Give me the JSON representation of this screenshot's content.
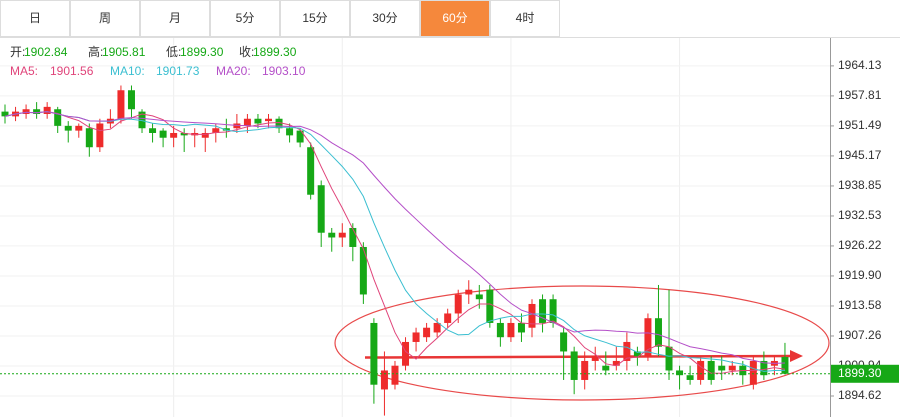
{
  "tabs": [
    "日",
    "周",
    "月",
    "5分",
    "15分",
    "30分",
    "60分",
    "4时"
  ],
  "active_tab": "60分",
  "info": [
    {
      "label": "开:",
      "value": "1902.84"
    },
    {
      "label": "高:",
      "value": "1905.81"
    },
    {
      "label": "低:",
      "value": "1899.30"
    },
    {
      "label": "收:",
      "value": "1899.30"
    }
  ],
  "moving_averages": [
    {
      "name": "MA5:",
      "value": "1901.56",
      "color": "#e0447a",
      "period": 5
    },
    {
      "name": "MA10:",
      "value": "1901.73",
      "color": "#3bbfd1",
      "period": 10
    },
    {
      "name": "MA20:",
      "value": "1903.10",
      "color": "#b44fc8",
      "period": 20
    }
  ],
  "chart_data": {
    "type": "candlestick",
    "up_color": "#ee2b2b",
    "down_color": "#16a816",
    "grid": true,
    "ylim": [
      1890.2,
      1970.0
    ],
    "yticks": [
      1964.13,
      1957.81,
      1951.49,
      1945.17,
      1938.85,
      1932.53,
      1926.22,
      {
        "value": 1919.9,
        "label": "1919.90"
      },
      1913.58,
      1907.26,
      1900.94,
      1894.62
    ],
    "last_price": {
      "value": 1899.3,
      "label": "1899.30"
    },
    "candles": [
      {
        "open": 1954.5,
        "high": 1956,
        "low": 1952,
        "close": 1953.5
      },
      {
        "open": 1953.5,
        "high": 1955.5,
        "low": 1952.5,
        "close": 1954.5
      },
      {
        "open": 1954,
        "high": 1956,
        "low": 1953,
        "close": 1955
      },
      {
        "open": 1955,
        "high": 1956.5,
        "low": 1953,
        "close": 1954
      },
      {
        "open": 1954,
        "high": 1956.5,
        "low": 1953,
        "close": 1955.5
      },
      {
        "open": 1955,
        "high": 1955.5,
        "low": 1950,
        "close": 1951.5
      },
      {
        "open": 1951.5,
        "high": 1952.5,
        "low": 1948,
        "close": 1950.5
      },
      {
        "open": 1950.5,
        "high": 1952,
        "low": 1949,
        "close": 1951.5
      },
      {
        "open": 1951,
        "high": 1952,
        "low": 1945,
        "close": 1947
      },
      {
        "open": 1947,
        "high": 1953,
        "low": 1946,
        "close": 1952
      },
      {
        "open": 1952,
        "high": 1955,
        "low": 1951,
        "close": 1953
      },
      {
        "open": 1953,
        "high": 1960,
        "low": 1952,
        "close": 1959
      },
      {
        "open": 1959,
        "high": 1960,
        "low": 1953,
        "close": 1955
      },
      {
        "open": 1954.5,
        "high": 1955,
        "low": 1950,
        "close": 1951
      },
      {
        "open": 1951,
        "high": 1952,
        "low": 1948,
        "close": 1950
      },
      {
        "open": 1950.5,
        "high": 1951,
        "low": 1947,
        "close": 1949
      },
      {
        "open": 1949,
        "high": 1951.5,
        "low": 1947,
        "close": 1950
      },
      {
        "open": 1950,
        "high": 1951,
        "low": 1946,
        "close": 1949.5
      },
      {
        "open": 1949.5,
        "high": 1951,
        "low": 1947,
        "close": 1950
      },
      {
        "open": 1949,
        "high": 1951,
        "low": 1946,
        "close": 1950
      },
      {
        "open": 1950,
        "high": 1952,
        "low": 1948,
        "close": 1951
      },
      {
        "open": 1951,
        "high": 1953,
        "low": 1949,
        "close": 1950.5
      },
      {
        "open": 1951,
        "high": 1954,
        "low": 1950,
        "close": 1952
      },
      {
        "open": 1951.5,
        "high": 1954,
        "low": 1950,
        "close": 1953
      },
      {
        "open": 1953,
        "high": 1954,
        "low": 1951,
        "close": 1952
      },
      {
        "open": 1952.5,
        "high": 1954,
        "low": 1951,
        "close": 1953
      },
      {
        "open": 1953,
        "high": 1953.5,
        "low": 1950,
        "close": 1951
      },
      {
        "open": 1951,
        "high": 1952,
        "low": 1948,
        "close": 1949.5
      },
      {
        "open": 1950.5,
        "high": 1951,
        "low": 1947,
        "close": 1948
      },
      {
        "open": 1947,
        "high": 1948,
        "low": 1936,
        "close": 1937
      },
      {
        "open": 1939,
        "high": 1940,
        "low": 1926,
        "close": 1929
      },
      {
        "open": 1929,
        "high": 1930,
        "low": 1925,
        "close": 1928
      },
      {
        "open": 1928,
        "high": 1931,
        "low": 1926,
        "close": 1929
      },
      {
        "open": 1930,
        "high": 1931,
        "low": 1923,
        "close": 1926
      },
      {
        "open": 1926,
        "high": 1927,
        "low": 1914,
        "close": 1916
      },
      {
        "open": 1910,
        "high": 1911,
        "low": 1893,
        "close": 1897
      },
      {
        "open": 1896,
        "high": 1904,
        "low": 1890.5,
        "close": 1900
      },
      {
        "open": 1897,
        "high": 1902,
        "low": 1896,
        "close": 1901
      },
      {
        "open": 1901,
        "high": 1907,
        "low": 1900,
        "close": 1906
      },
      {
        "open": 1906,
        "high": 1909,
        "low": 1904,
        "close": 1908
      },
      {
        "open": 1907,
        "high": 1910,
        "low": 1906,
        "close": 1909
      },
      {
        "open": 1908,
        "high": 1911,
        "low": 1907,
        "close": 1910
      },
      {
        "open": 1910,
        "high": 1913,
        "low": 1909,
        "close": 1912
      },
      {
        "open": 1912,
        "high": 1917,
        "low": 1910,
        "close": 1916
      },
      {
        "open": 1916,
        "high": 1919,
        "low": 1914,
        "close": 1917
      },
      {
        "open": 1916,
        "high": 1918,
        "low": 1913,
        "close": 1915
      },
      {
        "open": 1917,
        "high": 1918,
        "low": 1909,
        "close": 1910
      },
      {
        "open": 1910,
        "high": 1911,
        "low": 1905,
        "close": 1907
      },
      {
        "open": 1907,
        "high": 1911,
        "low": 1906,
        "close": 1910
      },
      {
        "open": 1910,
        "high": 1912,
        "low": 1906,
        "close": 1908
      },
      {
        "open": 1909,
        "high": 1915,
        "low": 1907,
        "close": 1914
      },
      {
        "open": 1915,
        "high": 1916,
        "low": 1908,
        "close": 1910
      },
      {
        "open": 1915,
        "high": 1916,
        "low": 1909,
        "close": 1910
      },
      {
        "open": 1908,
        "high": 1909,
        "low": 1898,
        "close": 1904
      },
      {
        "open": 1904,
        "high": 1905,
        "low": 1895,
        "close": 1898
      },
      {
        "open": 1898,
        "high": 1904,
        "low": 1896,
        "close": 1902
      },
      {
        "open": 1902,
        "high": 1905,
        "low": 1900,
        "close": 1903
      },
      {
        "open": 1901,
        "high": 1904,
        "low": 1899,
        "close": 1900
      },
      {
        "open": 1901,
        "high": 1905,
        "low": 1900,
        "close": 1902
      },
      {
        "open": 1902,
        "high": 1908,
        "low": 1900,
        "close": 1906
      },
      {
        "open": 1904,
        "high": 1905,
        "low": 1901,
        "close": 1903
      },
      {
        "open": 1903,
        "high": 1912,
        "low": 1902,
        "close": 1911
      },
      {
        "open": 1911,
        "high": 1918,
        "low": 1903,
        "close": 1905
      },
      {
        "open": 1905,
        "high": 1917,
        "low": 1898,
        "close": 1900
      },
      {
        "open": 1900,
        "high": 1901,
        "low": 1896,
        "close": 1899
      },
      {
        "open": 1899,
        "high": 1901,
        "low": 1897,
        "close": 1898
      },
      {
        "open": 1898,
        "high": 1903,
        "low": 1897,
        "close": 1902
      },
      {
        "open": 1902,
        "high": 1903,
        "low": 1897,
        "close": 1898
      },
      {
        "open": 1901,
        "high": 1903,
        "low": 1898,
        "close": 1900
      },
      {
        "open": 1900,
        "high": 1902,
        "low": 1899,
        "close": 1901
      },
      {
        "open": 1901,
        "high": 1902,
        "low": 1897,
        "close": 1899
      },
      {
        "open": 1897,
        "high": 1903,
        "low": 1896,
        "close": 1902
      },
      {
        "open": 1902,
        "high": 1904,
        "low": 1898,
        "close": 1899
      },
      {
        "open": 1901,
        "high": 1903,
        "low": 1899,
        "close": 1902
      },
      {
        "open": 1902.84,
        "high": 1905.81,
        "low": 1899.3,
        "close": 1899.3
      }
    ]
  }
}
